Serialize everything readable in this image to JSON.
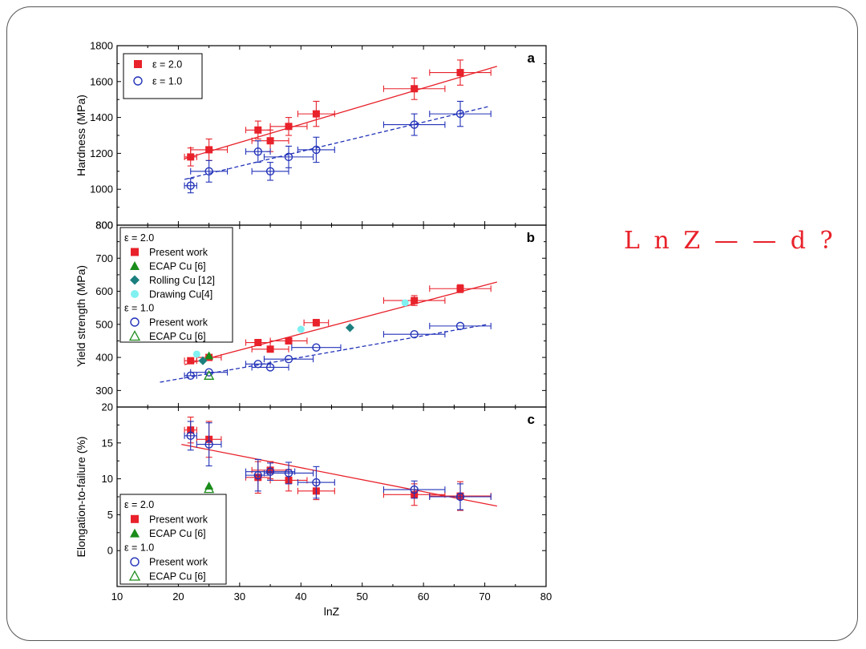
{
  "side_note": "L n Z — — d ?",
  "colors": {
    "red": "#e8212a",
    "blue": "#2232b8",
    "green": "#1a8c1a",
    "teal": "#1c7f7f",
    "cyan": "#80f0f0"
  },
  "chart_data": [
    {
      "id": "a",
      "type": "scatter",
      "panel_label": "a",
      "ylabel": "Hardness (MPa)",
      "xlim": [
        10,
        80
      ],
      "ylim": [
        800,
        1800
      ],
      "yticks": [
        "800",
        "1000",
        "1200",
        "1400",
        "1600",
        "1800"
      ],
      "legend": {
        "placement": "top-left",
        "entries": [
          {
            "marker": "square-filled",
            "color": "red",
            "label": "ε = 2.0"
          },
          {
            "marker": "circle-open",
            "color": "blue",
            "label": "ε = 1.0"
          }
        ]
      },
      "series": [
        {
          "marker": "square-filled",
          "color": "red",
          "points": [
            {
              "x": 22,
              "y": 1180,
              "xerr": 1,
              "yerr": 50
            },
            {
              "x": 25,
              "y": 1220,
              "xerr": 3,
              "yerr": 60
            },
            {
              "x": 33,
              "y": 1330,
              "xerr": 2,
              "yerr": 50
            },
            {
              "x": 35,
              "y": 1270,
              "xerr": 3,
              "yerr": 60
            },
            {
              "x": 38,
              "y": 1350,
              "xerr": 3,
              "yerr": 50
            },
            {
              "x": 42.5,
              "y": 1420,
              "xerr": 3,
              "yerr": 70
            },
            {
              "x": 58.5,
              "y": 1560,
              "xerr": 5,
              "yerr": 60
            },
            {
              "x": 66,
              "y": 1650,
              "xerr": 5,
              "yerr": 70
            }
          ]
        },
        {
          "marker": "circle-open",
          "color": "blue",
          "points": [
            {
              "x": 22,
              "y": 1020,
              "xerr": 1,
              "yerr": 40
            },
            {
              "x": 25,
              "y": 1100,
              "xerr": 3,
              "yerr": 60
            },
            {
              "x": 33,
              "y": 1210,
              "xerr": 2,
              "yerr": 60
            },
            {
              "x": 35,
              "y": 1100,
              "xerr": 3,
              "yerr": 50
            },
            {
              "x": 38,
              "y": 1180,
              "xerr": 4,
              "yerr": 60
            },
            {
              "x": 42.5,
              "y": 1220,
              "xerr": 3,
              "yerr": 70
            },
            {
              "x": 58.5,
              "y": 1360,
              "xerr": 5,
              "yerr": 60
            },
            {
              "x": 66,
              "y": 1420,
              "xerr": 5,
              "yerr": 70
            }
          ]
        }
      ],
      "fits": [
        {
          "color": "red",
          "style": "solid",
          "from": [
            21,
            1170
          ],
          "to": [
            72,
            1685
          ]
        },
        {
          "color": "blue",
          "style": "dashed",
          "from": [
            21,
            1055
          ],
          "to": [
            70.5,
            1460
          ]
        }
      ]
    },
    {
      "id": "b",
      "type": "scatter",
      "panel_label": "b",
      "ylabel": "Yield strength (MPa)",
      "xlim": [
        10,
        80
      ],
      "ylim": [
        250,
        800
      ],
      "yticks": [
        "300",
        "400",
        "500",
        "600",
        "700",
        "800"
      ],
      "legend": {
        "placement": "top-left",
        "entries": [
          {
            "marker": "none",
            "label": "ε = 2.0"
          },
          {
            "marker": "square-filled",
            "color": "red",
            "label": "Present work"
          },
          {
            "marker": "triangle-filled",
            "color": "green",
            "label": "ECAP Cu [6]"
          },
          {
            "marker": "diamond-filled",
            "color": "teal",
            "label": "Rolling Cu [12]"
          },
          {
            "marker": "circle-filled",
            "color": "cyan",
            "label": "Drawing Cu[4]"
          },
          {
            "marker": "none",
            "label": "ε = 1.0"
          },
          {
            "marker": "circle-open",
            "color": "blue",
            "label": "Present work"
          },
          {
            "marker": "triangle-open",
            "color": "green",
            "label": "ECAP Cu [6]"
          }
        ]
      },
      "series": [
        {
          "marker": "square-filled",
          "color": "red",
          "points": [
            {
              "x": 22,
              "y": 390,
              "xerr": 1
            },
            {
              "x": 25,
              "y": 400,
              "xerr": 2
            },
            {
              "x": 33,
              "y": 445,
              "xerr": 2
            },
            {
              "x": 35,
              "y": 425,
              "xerr": 3
            },
            {
              "x": 38,
              "y": 450,
              "xerr": 3
            },
            {
              "x": 42.5,
              "y": 505,
              "xerr": 2,
              "yerr": 10
            },
            {
              "x": 58.5,
              "y": 572,
              "xerr": 5,
              "yerr": 15
            },
            {
              "x": 66,
              "y": 608,
              "xerr": 5,
              "yerr": 12
            }
          ]
        },
        {
          "marker": "circle-open",
          "color": "blue",
          "points": [
            {
              "x": 22,
              "y": 345,
              "xerr": 1
            },
            {
              "x": 25,
              "y": 355,
              "xerr": 3
            },
            {
              "x": 33,
              "y": 380,
              "xerr": 2
            },
            {
              "x": 35,
              "y": 370,
              "xerr": 3
            },
            {
              "x": 38,
              "y": 395,
              "xerr": 4
            },
            {
              "x": 42.5,
              "y": 430,
              "xerr": 4
            },
            {
              "x": 58.5,
              "y": 470,
              "xerr": 5
            },
            {
              "x": 66,
              "y": 495,
              "xerr": 5
            }
          ]
        },
        {
          "marker": "triangle-filled",
          "color": "green",
          "points": [
            {
              "x": 25,
              "y": 405
            }
          ]
        },
        {
          "marker": "diamond-filled",
          "color": "teal",
          "points": [
            {
              "x": 24,
              "y": 390
            },
            {
              "x": 48,
              "y": 490
            }
          ]
        },
        {
          "marker": "circle-filled",
          "color": "cyan",
          "points": [
            {
              "x": 23,
              "y": 410
            },
            {
              "x": 40,
              "y": 485
            },
            {
              "x": 57,
              "y": 565
            }
          ]
        },
        {
          "marker": "triangle-open",
          "color": "green",
          "points": [
            {
              "x": 25,
              "y": 345
            }
          ]
        }
      ],
      "fits": [
        {
          "color": "red",
          "style": "solid",
          "from": [
            21,
            378
          ],
          "to": [
            72,
            628
          ]
        },
        {
          "color": "blue",
          "style": "dashed",
          "from": [
            17,
            325
          ],
          "to": [
            70.5,
            500
          ]
        }
      ]
    },
    {
      "id": "c",
      "type": "scatter",
      "panel_label": "c",
      "ylabel": "Elongation-to-failure (%)",
      "xlabel": "lnZ",
      "xlim": [
        10,
        80
      ],
      "ylim": [
        -5,
        20
      ],
      "yticks": [
        "0",
        "5",
        "10",
        "15",
        "20"
      ],
      "xticks": [
        "10",
        "20",
        "30",
        "40",
        "50",
        "60",
        "70",
        "80"
      ],
      "legend": {
        "placement": "bottom-left",
        "entries": [
          {
            "marker": "none",
            "label": "ε = 2.0"
          },
          {
            "marker": "square-filled",
            "color": "red",
            "label": "Present work"
          },
          {
            "marker": "triangle-filled",
            "color": "green",
            "label": "ECAP Cu [6]"
          },
          {
            "marker": "none",
            "label": "ε = 1.0"
          },
          {
            "marker": "circle-open",
            "color": "blue",
            "label": "Present work"
          },
          {
            "marker": "triangle-open",
            "color": "green",
            "label": "ECAP Cu [6]"
          }
        ]
      },
      "series": [
        {
          "marker": "square-filled",
          "color": "red",
          "points": [
            {
              "x": 22,
              "y": 16.8,
              "xerr": 1,
              "yerr": 1.8
            },
            {
              "x": 25,
              "y": 15.5,
              "xerr": 2,
              "yerr": 2.5
            },
            {
              "x": 33,
              "y": 10.2,
              "xerr": 2,
              "yerr": 2.2
            },
            {
              "x": 35,
              "y": 11.2,
              "xerr": 3,
              "yerr": 1.2
            },
            {
              "x": 38,
              "y": 9.8,
              "xerr": 3,
              "yerr": 1.5
            },
            {
              "x": 42.5,
              "y": 8.3,
              "xerr": 3,
              "yerr": 1.2
            },
            {
              "x": 58.5,
              "y": 7.8,
              "xerr": 5,
              "yerr": 1.5
            },
            {
              "x": 66,
              "y": 7.6,
              "xerr": 5,
              "yerr": 2
            }
          ]
        },
        {
          "marker": "circle-open",
          "color": "blue",
          "points": [
            {
              "x": 22,
              "y": 16.0,
              "xerr": 1,
              "yerr": 2
            },
            {
              "x": 25,
              "y": 14.8,
              "xerr": 2,
              "yerr": 3
            },
            {
              "x": 33,
              "y": 10.5,
              "xerr": 2,
              "yerr": 2.2
            },
            {
              "x": 35,
              "y": 11.0,
              "xerr": 4,
              "yerr": 1.2
            },
            {
              "x": 38,
              "y": 10.8,
              "xerr": 4,
              "yerr": 1.5
            },
            {
              "x": 42.5,
              "y": 9.5,
              "xerr": 3,
              "yerr": 2.2
            },
            {
              "x": 58.5,
              "y": 8.5,
              "xerr": 5,
              "yerr": 1.2
            },
            {
              "x": 66,
              "y": 7.5,
              "xerr": 5,
              "yerr": 1.8
            }
          ]
        },
        {
          "marker": "triangle-filled",
          "color": "green",
          "points": [
            {
              "x": 25,
              "y": 9.0
            }
          ]
        },
        {
          "marker": "triangle-open",
          "color": "green",
          "points": [
            {
              "x": 25,
              "y": 8.6
            }
          ]
        }
      ],
      "fits": [
        {
          "color": "red",
          "style": "solid",
          "from": [
            20.5,
            14.8
          ],
          "to": [
            72,
            6.2
          ]
        }
      ]
    }
  ]
}
